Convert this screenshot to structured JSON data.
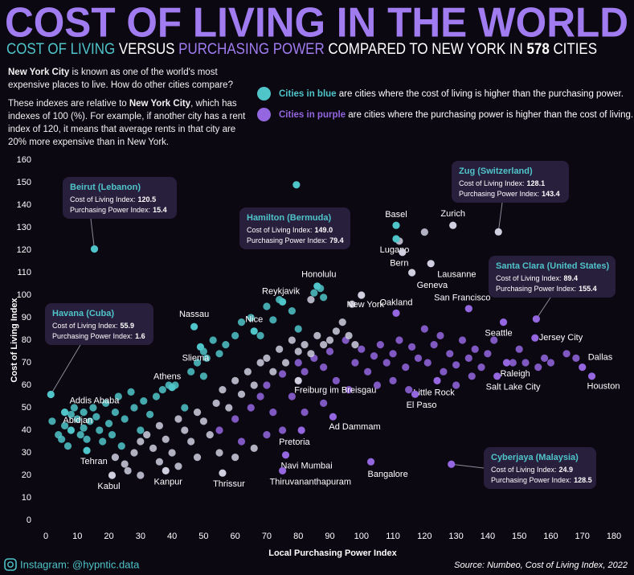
{
  "chart_data": {
    "type": "scatter",
    "title": "COST OF LIVING IN THE WORLD",
    "subtitle": [
      "COST OF LIVING",
      "VERSUS",
      "PURCHASING POWER",
      "COMPARED TO NEW YORK IN"
    ],
    "city_count": 578,
    "city_word": "CITIES",
    "notes": [
      [
        "New York City",
        " is known as one of the world's most expensive places to live. How do other cities compare?"
      ],
      [
        "These indexes are relative to ",
        "New York City",
        ", which has indexes of 100 (%). For example, if another city has a rent index of 120, it means that average rents in that city are 20% more expensive than in New York."
      ]
    ],
    "legend": [
      {
        "color": "#4fc4c9",
        "lead": "Cities in blue",
        "text": " are cities where the cost of living is higher than the purchasing power."
      },
      {
        "color": "#9466e0",
        "lead": "Cities in purple",
        "text": " are cities where the purchasing power is higher than the cost of living."
      }
    ],
    "x_label": "Local Purchasing Power Index",
    "y_label": "Cost of Living Index",
    "credit": "Instagram: @hypntic.data",
    "source": "Source: Numbeo, Cost of Living Index, 2022",
    "xlim": [
      0,
      180
    ],
    "ylim": [
      0,
      160
    ],
    "xticks": [
      0,
      10,
      20,
      30,
      40,
      50,
      60,
      70,
      80,
      90,
      100,
      110,
      120,
      130,
      140,
      150,
      160,
      170,
      180
    ],
    "yticks": [
      0,
      10,
      20,
      30,
      40,
      50,
      60,
      70,
      80,
      90,
      100,
      110,
      120,
      130,
      140,
      150,
      160
    ],
    "series": [
      {
        "color": "#4fc4c9",
        "x": [
          2,
          4,
          5,
          6,
          7,
          8,
          9,
          10,
          11,
          12,
          13,
          14,
          15,
          16,
          17,
          18,
          19,
          20,
          21,
          22,
          23,
          25,
          27,
          28,
          30,
          31,
          33,
          35,
          37,
          39,
          41,
          46,
          48,
          50,
          51,
          53,
          55,
          57,
          60,
          62,
          65,
          68,
          70,
          72,
          74,
          78,
          80,
          85,
          87,
          88,
          50,
          44,
          12,
          24
        ],
        "y": [
          44,
          38,
          36,
          42,
          33,
          47,
          50,
          45,
          38,
          41,
          36,
          44,
          50,
          46,
          40,
          35,
          52,
          43,
          38,
          48,
          55,
          45,
          57,
          50,
          40,
          53,
          47,
          55,
          58,
          60,
          60,
          66,
          70,
          75,
          72,
          80,
          74,
          78,
          82,
          88,
          90,
          82,
          95,
          89,
          98,
          93,
          85,
          101,
          103,
          99,
          64,
          50,
          48,
          33
        ]
      },
      {
        "color": "#9466e0",
        "x": [
          55,
          60,
          65,
          68,
          70,
          72,
          75,
          78,
          80,
          82,
          85,
          88,
          90,
          92,
          95,
          98,
          100,
          102,
          104,
          106,
          108,
          110,
          112,
          114,
          116,
          118,
          120,
          121,
          123,
          125,
          126,
          128,
          130,
          132,
          134,
          136,
          138,
          140,
          142,
          148,
          150,
          152,
          156,
          158,
          160,
          165,
          168,
          110,
          115,
          105,
          96,
          88,
          75,
          82,
          62,
          70,
          130,
          135
        ],
        "y": [
          40,
          45,
          50,
          55,
          60,
          48,
          65,
          55,
          70,
          66,
          72,
          68,
          75,
          62,
          80,
          70,
          76,
          66,
          73,
          78,
          70,
          74,
          80,
          68,
          77,
          72,
          85,
          70,
          78,
          82,
          66,
          74,
          69,
          80,
          72,
          76,
          68,
          74,
          80,
          70,
          76,
          70,
          68,
          72,
          70,
          74,
          72,
          62,
          58,
          60,
          58,
          52,
          40,
          48,
          35,
          38,
          60,
          64
        ]
      },
      {
        "color": "#cfcfe0",
        "x": [
          22,
          25,
          28,
          30,
          32,
          34,
          36,
          38,
          40,
          42,
          44,
          46,
          48,
          50,
          52,
          54,
          56,
          58,
          60,
          62,
          64,
          66,
          68,
          70,
          72,
          74,
          76,
          78,
          80,
          82,
          84,
          86,
          88,
          90,
          92,
          94,
          96,
          98,
          26,
          30,
          36,
          42,
          48,
          55,
          60,
          66,
          84,
          97,
          120,
          112
        ],
        "y": [
          28,
          25,
          30,
          35,
          38,
          32,
          42,
          36,
          30,
          45,
          40,
          35,
          48,
          44,
          38,
          52,
          58,
          50,
          62,
          56,
          66,
          60,
          70,
          72,
          66,
          76,
          70,
          80,
          75,
          78,
          74,
          82,
          78,
          80,
          84,
          88,
          82,
          78,
          22,
          20,
          26,
          24,
          28,
          30,
          28,
          32,
          98,
          96,
          128,
          124
        ]
      }
    ],
    "labeled_points": [
      {
        "name": "Basel",
        "x": 111,
        "y": 131,
        "color": "#4fc4c9"
      },
      {
        "name": "Zurich",
        "x": 129,
        "y": 131,
        "color": "#cfcfe0"
      },
      {
        "name": "Lugano",
        "x": 111,
        "y": 125,
        "color": "#4fc4c9"
      },
      {
        "name": "Bern",
        "x": 113,
        "y": 119,
        "color": "#cfcfe0"
      },
      {
        "name": "Lausanne",
        "x": 122,
        "y": 114,
        "color": "#cfcfe0"
      },
      {
        "name": "Geneva",
        "x": 116,
        "y": 110,
        "color": "#cfcfe0"
      },
      {
        "name": "Honolulu",
        "x": 86,
        "y": 104,
        "color": "#4fc4c9"
      },
      {
        "name": "Reykjavik",
        "x": 75,
        "y": 97,
        "color": "#4fc4c9"
      },
      {
        "name": "New York",
        "x": 100,
        "y": 100,
        "color": "#cfcfe0"
      },
      {
        "name": "Oakland",
        "x": 111,
        "y": 92,
        "color": "#9466e0"
      },
      {
        "name": "Nassau",
        "x": 47,
        "y": 86,
        "color": "#4fc4c9"
      },
      {
        "name": "Nice",
        "x": 66,
        "y": 84,
        "color": "#4fc4c9"
      },
      {
        "name": "Sliema",
        "x": 49,
        "y": 77,
        "color": "#4fc4c9"
      },
      {
        "name": "San Francisco",
        "x": 134,
        "y": 94,
        "color": "#9466e0"
      },
      {
        "name": "Seattle",
        "x": 145,
        "y": 88,
        "color": "#9466e0"
      },
      {
        "name": "Jersey City",
        "x": 155,
        "y": 81,
        "color": "#9466e0"
      },
      {
        "name": "Dallas",
        "x": 170,
        "y": 68,
        "color": "#9466e0"
      },
      {
        "name": "Houston",
        "x": 173,
        "y": 64,
        "color": "#9466e0"
      },
      {
        "name": "Raleigh",
        "x": 146,
        "y": 70,
        "color": "#9466e0"
      },
      {
        "name": "Salt Lake City",
        "x": 143,
        "y": 64,
        "color": "#9466e0"
      },
      {
        "name": "Little Rock",
        "x": 124,
        "y": 62,
        "color": "#9466e0"
      },
      {
        "name": "El Paso",
        "x": 117,
        "y": 56,
        "color": "#9466e0"
      },
      {
        "name": "Freiburg im Breisgau",
        "x": 80,
        "y": 62,
        "color": "#cfcfe0"
      },
      {
        "name": "Ad Dammam",
        "x": 91,
        "y": 46,
        "color": "#9466e0"
      },
      {
        "name": "Pretoria",
        "x": 81,
        "y": 40,
        "color": "#9466e0"
      },
      {
        "name": "Athens",
        "x": 40,
        "y": 59,
        "color": "#4fc4c9"
      },
      {
        "name": "Addis Ababa",
        "x": 6,
        "y": 48,
        "color": "#4fc4c9"
      },
      {
        "name": "Abidjan",
        "x": 8,
        "y": 40,
        "color": "#4fc4c9"
      },
      {
        "name": "Tehran",
        "x": 13,
        "y": 31,
        "color": "#4fc4c9"
      },
      {
        "name": "Kabul",
        "x": 21,
        "y": 20,
        "color": "#cfcfe0"
      },
      {
        "name": "Kanpur",
        "x": 38,
        "y": 22,
        "color": "#cfcfe0"
      },
      {
        "name": "Thrissur",
        "x": 56,
        "y": 21,
        "color": "#cfcfe0"
      },
      {
        "name": "Navi Mumbai",
        "x": 76,
        "y": 29,
        "color": "#9466e0"
      },
      {
        "name": "Thiruvananthapuram",
        "x": 75,
        "y": 22,
        "color": "#9466e0"
      },
      {
        "name": "Bangalore",
        "x": 103,
        "y": 26,
        "color": "#9466e0"
      }
    ],
    "callout_fields": [
      "Cost of Living Index:",
      "Purchasing Power Index:"
    ],
    "callouts": [
      {
        "name": "Beirut (Lebanon)",
        "cost": 120.5,
        "power": 15.4,
        "color": "#4fc4c9"
      },
      {
        "name": "Hamilton (Bermuda)",
        "cost": {
          "value": 149,
          "label": "149.0"
        },
        "power": 79.4,
        "color": "#4fc4c9"
      },
      {
        "name": "Zug (Switzerland)",
        "cost": 128.1,
        "power": 143.4,
        "color": "#cfcfe0"
      },
      {
        "name": "Santa Clara (United States)",
        "cost": 89.4,
        "power": 155.4,
        "color": "#9466e0"
      },
      {
        "name": "Havana (Cuba)",
        "cost": 55.9,
        "power": 1.6,
        "color": "#4fc4c9"
      },
      {
        "name": "Cyberjaya (Malaysia)",
        "cost": 24.9,
        "power": 128.5,
        "color": "#9466e0"
      }
    ]
  }
}
